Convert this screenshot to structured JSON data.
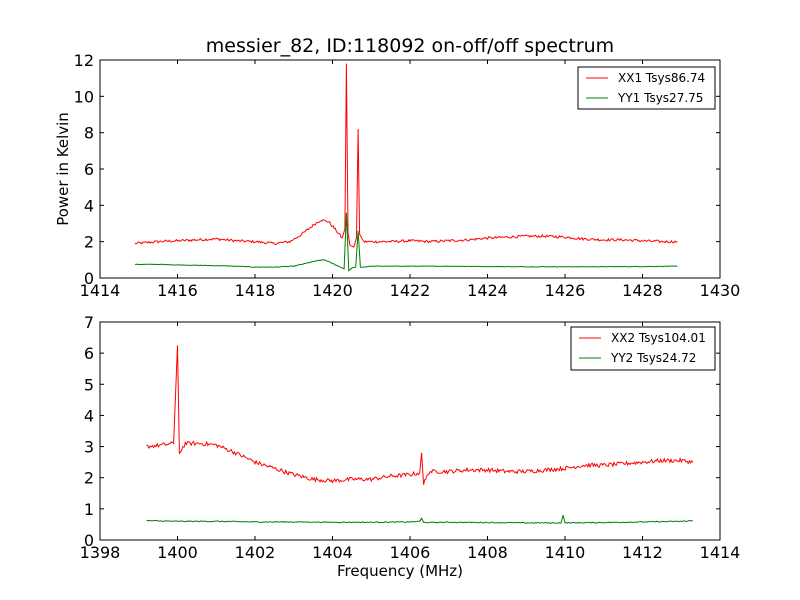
{
  "figure": {
    "title": "messier_82, ID:118092 on-off/off spectrum"
  },
  "chart_data": [
    {
      "type": "line",
      "title": "messier_82, ID:118092 on-off/off spectrum",
      "xlabel": "",
      "ylabel": "Power in Kelvin",
      "xlim": [
        1414,
        1430
      ],
      "ylim": [
        0,
        12
      ],
      "xticks": [
        1414,
        1416,
        1418,
        1420,
        1422,
        1424,
        1426,
        1428,
        1430
      ],
      "yticks": [
        0,
        2,
        4,
        6,
        8,
        10,
        12
      ],
      "grid": false,
      "legend_position": "top-right",
      "series": [
        {
          "name": "XX1 Tsys86.74",
          "color": "#ff0000",
          "x": [
            1414.9,
            1415.5,
            1416.0,
            1416.5,
            1417.0,
            1417.5,
            1418.0,
            1418.5,
            1418.9,
            1419.2,
            1419.5,
            1419.7,
            1419.9,
            1420.1,
            1420.25,
            1420.32,
            1420.36,
            1420.4,
            1420.45,
            1420.55,
            1420.62,
            1420.66,
            1420.7,
            1420.8,
            1421.0,
            1421.5,
            1422.0,
            1422.5,
            1423.0,
            1423.5,
            1424.0,
            1424.5,
            1425.0,
            1425.5,
            1426.0,
            1426.5,
            1427.0,
            1427.5,
            1428.0,
            1428.5,
            1428.9
          ],
          "y": [
            1.9,
            2.0,
            2.05,
            2.1,
            2.15,
            2.05,
            2.0,
            1.9,
            2.0,
            2.4,
            2.9,
            3.2,
            3.1,
            2.6,
            2.2,
            2.7,
            11.8,
            2.5,
            1.8,
            1.7,
            2.2,
            8.2,
            2.4,
            2.0,
            2.0,
            2.0,
            2.05,
            2.0,
            2.05,
            2.1,
            2.2,
            2.25,
            2.3,
            2.3,
            2.25,
            2.15,
            2.1,
            2.1,
            2.05,
            2.0,
            2.0
          ]
        },
        {
          "name": "YY1 Tsys27.75",
          "color": "#007f00",
          "x": [
            1414.9,
            1415.5,
            1416.0,
            1416.5,
            1417.0,
            1417.5,
            1418.0,
            1418.5,
            1419.0,
            1419.3,
            1419.6,
            1419.8,
            1420.0,
            1420.2,
            1420.3,
            1420.36,
            1420.42,
            1420.5,
            1420.6,
            1420.66,
            1420.72,
            1420.8,
            1421.0,
            1421.5,
            1422.0,
            1423.0,
            1424.0,
            1425.0,
            1426.0,
            1427.0,
            1428.0,
            1428.9
          ],
          "y": [
            0.75,
            0.75,
            0.72,
            0.7,
            0.68,
            0.65,
            0.6,
            0.6,
            0.65,
            0.8,
            0.95,
            1.0,
            0.8,
            0.6,
            0.5,
            3.6,
            0.4,
            0.55,
            0.6,
            2.6,
            0.6,
            0.6,
            0.65,
            0.65,
            0.65,
            0.65,
            0.63,
            0.62,
            0.62,
            0.62,
            0.63,
            0.65
          ]
        }
      ]
    },
    {
      "type": "line",
      "title": "",
      "xlabel": "Frequency (MHz)",
      "ylabel": "",
      "xlim": [
        1398,
        1414
      ],
      "ylim": [
        0,
        7
      ],
      "xticks": [
        1398,
        1400,
        1402,
        1404,
        1406,
        1408,
        1410,
        1412,
        1414
      ],
      "yticks": [
        0,
        1,
        2,
        3,
        4,
        5,
        6,
        7
      ],
      "grid": false,
      "legend_position": "top-right",
      "series": [
        {
          "name": "XX2 Tsys104.01",
          "color": "#ff0000",
          "x": [
            1399.2,
            1399.6,
            1399.9,
            1400.0,
            1400.05,
            1400.2,
            1400.6,
            1401.0,
            1401.5,
            1402.0,
            1402.5,
            1403.0,
            1403.5,
            1404.0,
            1404.5,
            1405.0,
            1405.5,
            1406.0,
            1406.25,
            1406.3,
            1406.35,
            1406.5,
            1407.0,
            1407.5,
            1408.0,
            1408.5,
            1409.0,
            1409.5,
            1410.0,
            1410.5,
            1411.0,
            1411.5,
            1412.0,
            1412.5,
            1413.0,
            1413.3
          ],
          "y": [
            3.0,
            3.05,
            3.1,
            6.25,
            2.8,
            3.1,
            3.1,
            3.05,
            2.8,
            2.5,
            2.3,
            2.1,
            1.95,
            1.9,
            1.95,
            1.95,
            2.05,
            2.1,
            2.15,
            2.8,
            1.8,
            2.2,
            2.2,
            2.25,
            2.25,
            2.2,
            2.2,
            2.25,
            2.3,
            2.4,
            2.4,
            2.45,
            2.5,
            2.55,
            2.55,
            2.5
          ]
        },
        {
          "name": "YY2 Tsys24.72",
          "color": "#007f00",
          "x": [
            1399.2,
            1400.0,
            1401.0,
            1402.0,
            1403.0,
            1404.0,
            1405.0,
            1406.0,
            1406.25,
            1406.3,
            1406.35,
            1407.0,
            1408.0,
            1409.0,
            1409.9,
            1409.95,
            1410.0,
            1411.0,
            1412.0,
            1413.0,
            1413.3
          ],
          "y": [
            0.62,
            0.6,
            0.6,
            0.58,
            0.58,
            0.57,
            0.57,
            0.58,
            0.6,
            0.7,
            0.56,
            0.57,
            0.56,
            0.55,
            0.55,
            0.8,
            0.55,
            0.56,
            0.58,
            0.6,
            0.62
          ]
        }
      ]
    }
  ]
}
